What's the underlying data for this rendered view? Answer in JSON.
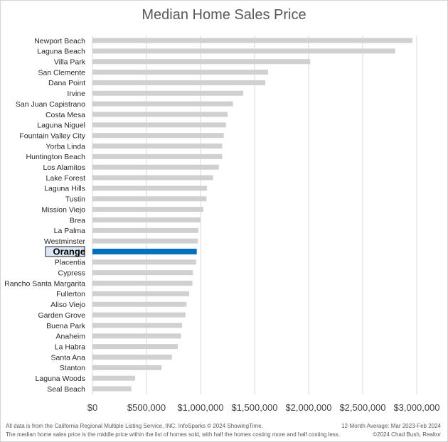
{
  "chart_data": {
    "type": "bar",
    "orientation": "horizontal",
    "title": "Median Home Sales Price",
    "categories": [
      "Newport Beach",
      "Laguna Beach",
      "Villa Park",
      "San Clemente",
      "Dana Point",
      "Irvine",
      "San Juan Capistrano",
      "Costa Mesa",
      "Laguna Niguel",
      "Fountain Valley City",
      "Yorba Linda",
      "Huntington Beach",
      "Los Alamitos",
      "Lake Forest",
      "Laguna Hills",
      "Tustin",
      "Mission Viejo",
      "Brea",
      "La Palma",
      "Westminster",
      "Orange",
      "Placentia",
      "Cypress",
      "Rancho Santa Margarita",
      "Fullerton",
      "Aliso Viejo",
      "Garden Grove",
      "Buena Park",
      "Anaheim",
      "La Habra",
      "Santa Ana",
      "Stanton",
      "Laguna Woods",
      "Seal Beach"
    ],
    "values": [
      2960000,
      2800000,
      2015000,
      1625000,
      1600000,
      1395000,
      1300000,
      1250000,
      1235000,
      1215000,
      1200000,
      1200000,
      1170000,
      1115000,
      1060000,
      1055000,
      1025000,
      1000000,
      980000,
      975000,
      965000,
      960000,
      930000,
      925000,
      895000,
      870000,
      860000,
      830000,
      820000,
      790000,
      735000,
      640000,
      395000,
      360000
    ],
    "highlight": "Orange",
    "xlim": [
      0,
      3000000
    ],
    "xticks": [
      0,
      500000,
      1000000,
      1500000,
      2000000,
      2500000,
      3000000
    ],
    "xtick_labels": [
      "$0",
      "$500,000",
      "$1,000,000",
      "$1,500,000",
      "$2,000,000",
      "$2,500,000",
      "$3,000,000"
    ],
    "grid": true,
    "colors": {
      "bar": "#d0d0d0",
      "highlight": "#0070c0",
      "grid": "#d9d9d9"
    }
  },
  "footer": {
    "source": "All data is from the California Regional Multiple Listing Service, INC. InfoSparks © 2024 ShowingTime.",
    "definition": "The median home sales price is the middle price within the list of homes sold, with half the homes costing more and half costing less.",
    "period": "12-Month Average: Mar 2023-Feb 2024",
    "copyright": "©2024 Chad Bush, Realtor"
  }
}
